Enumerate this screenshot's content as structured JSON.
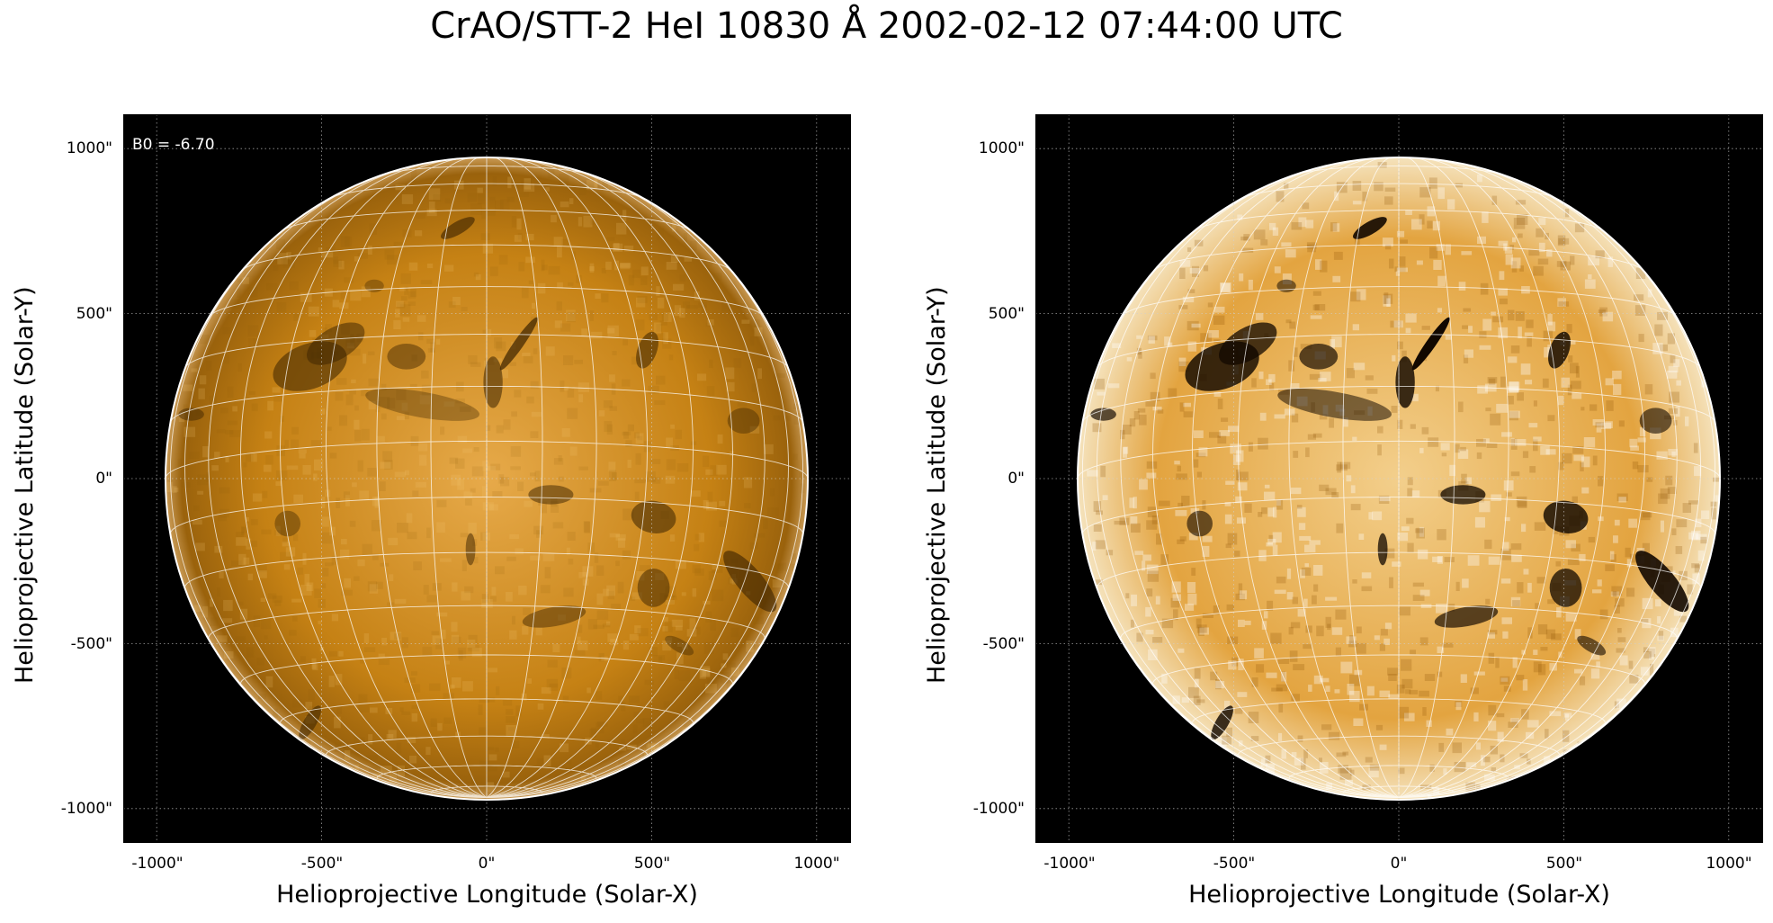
{
  "title": "CrAO/STT-2 HeI 10830 Å 2002-02-12 07:44:00 UTC",
  "colors": {
    "background": "#ffffff",
    "plot_bg": "#000000",
    "disk_base": "#c07a10",
    "grid": "#ffffff"
  },
  "panels": [
    {
      "id": "left",
      "annotation": "B0 = -6.70",
      "xlabel": "Helioprojective Longitude (Solar-X)",
      "ylabel": "Helioprojective Latitude (Solar-Y)",
      "xticks": [
        "-1000\"",
        "-500\"",
        "0\"",
        "500\"",
        "1000\""
      ],
      "yticks": [
        "1000\"",
        "500\"",
        "0\"",
        "-500\"",
        "-1000\""
      ],
      "contrast": "normal"
    },
    {
      "id": "right",
      "annotation": "",
      "xlabel": "Helioprojective Longitude (Solar-X)",
      "ylabel": "Helioprojective Latitude (Solar-Y)",
      "xticks": [
        "-1000\"",
        "-500\"",
        "0\"",
        "500\"",
        "1000\""
      ],
      "yticks": [
        "1000\"",
        "500\"",
        "0\"",
        "-500\"",
        "-1000\""
      ],
      "contrast": "enhanced"
    }
  ]
}
